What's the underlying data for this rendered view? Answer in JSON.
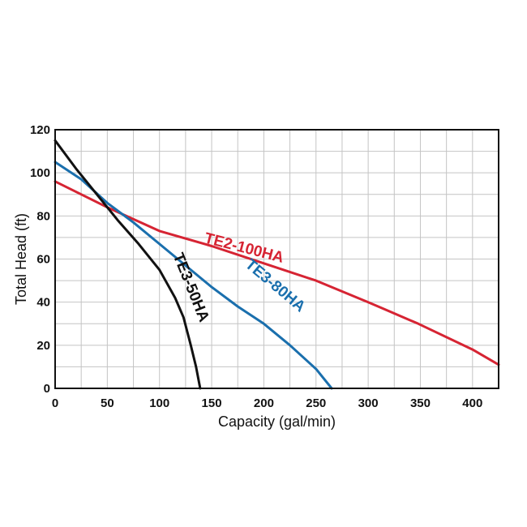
{
  "chart_data": {
    "type": "line",
    "title": "",
    "xlabel": "Capacity  (gal/min)",
    "ylabel": "Total  Head  (ft)",
    "xlim": [
      0,
      425
    ],
    "ylim": [
      0,
      120
    ],
    "x_ticks": [
      "0",
      "50",
      "100",
      "150",
      "200",
      "250",
      "300",
      "350",
      "400"
    ],
    "y_ticks": [
      "0",
      "20",
      "40",
      "60",
      "80",
      "100",
      "120"
    ],
    "grid": true,
    "series": [
      {
        "name": "TE2-100HA",
        "color": "#d62433",
        "points": [
          [
            0,
            96
          ],
          [
            50,
            84
          ],
          [
            100,
            73
          ],
          [
            150,
            66
          ],
          [
            200,
            58
          ],
          [
            250,
            50
          ],
          [
            300,
            40
          ],
          [
            348,
            30
          ],
          [
            400,
            18
          ],
          [
            425,
            11
          ]
        ]
      },
      {
        "name": "TE3-80HA",
        "color": "#1a6fad",
        "points": [
          [
            0,
            105
          ],
          [
            25,
            97
          ],
          [
            50,
            86
          ],
          [
            75,
            77
          ],
          [
            100,
            67
          ],
          [
            125,
            57
          ],
          [
            150,
            47
          ],
          [
            175,
            38
          ],
          [
            200,
            30
          ],
          [
            225,
            20
          ],
          [
            250,
            9
          ],
          [
            265,
            0
          ]
        ]
      },
      {
        "name": "TE3-50HA",
        "color": "#111111",
        "points": [
          [
            0,
            115
          ],
          [
            20,
            102
          ],
          [
            40,
            90
          ],
          [
            60,
            78
          ],
          [
            80,
            67
          ],
          [
            100,
            55
          ],
          [
            115,
            42
          ],
          [
            123,
            33
          ],
          [
            130,
            20
          ],
          [
            135,
            10
          ],
          [
            139,
            0
          ]
        ]
      }
    ]
  }
}
